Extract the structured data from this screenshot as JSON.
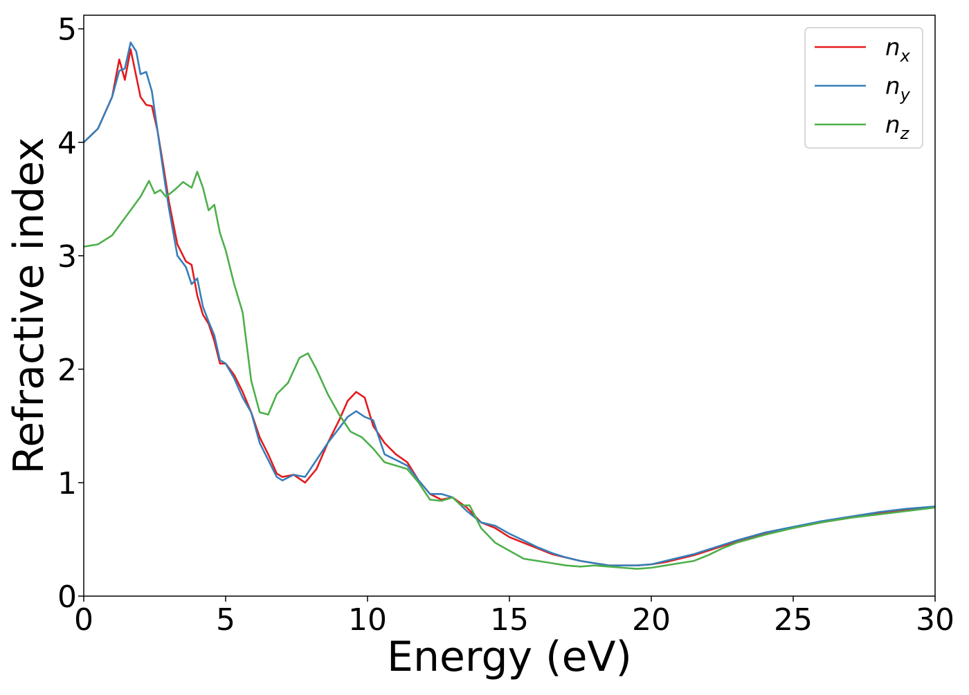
{
  "chart_data": {
    "type": "line",
    "title": "",
    "xlabel": "Energy (eV)",
    "ylabel": "Refractive index",
    "xlim": [
      0,
      30
    ],
    "ylim": [
      0,
      5.12
    ],
    "xticks": [
      0,
      5,
      10,
      15,
      20,
      25,
      30
    ],
    "yticks": [
      0,
      1,
      2,
      3,
      4,
      5
    ],
    "grid": false,
    "legend_position": "top-right",
    "series": [
      {
        "name": "n",
        "subscript": "x",
        "color": "#e41a1c",
        "x": [
          0,
          0.5,
          1.0,
          1.25,
          1.45,
          1.65,
          1.75,
          2.0,
          2.2,
          2.4,
          2.6,
          2.8,
          3.0,
          3.3,
          3.6,
          3.8,
          4.0,
          4.2,
          4.4,
          4.6,
          4.8,
          5.0,
          5.3,
          5.6,
          5.9,
          6.2,
          6.5,
          6.8,
          7.0,
          7.4,
          7.8,
          8.2,
          8.6,
          9.0,
          9.3,
          9.6,
          9.9,
          10.2,
          10.6,
          11.0,
          11.4,
          11.8,
          12.2,
          12.6,
          13.0,
          13.5,
          14.0,
          14.5,
          15.0,
          15.5,
          16.0,
          16.5,
          17.0,
          17.5,
          18.0,
          18.5,
          19.0,
          19.5,
          20.0,
          20.5,
          21.0,
          21.5,
          22.0,
          22.5,
          23.0,
          24.0,
          25.0,
          26.0,
          27.0,
          28.0,
          29.0,
          30.0
        ],
        "y": [
          4.0,
          4.12,
          4.4,
          4.73,
          4.55,
          4.82,
          4.7,
          4.4,
          4.33,
          4.32,
          4.1,
          3.8,
          3.48,
          3.1,
          2.95,
          2.92,
          2.65,
          2.48,
          2.4,
          2.25,
          2.05,
          2.05,
          1.95,
          1.8,
          1.62,
          1.4,
          1.25,
          1.08,
          1.05,
          1.07,
          1.0,
          1.12,
          1.35,
          1.55,
          1.72,
          1.8,
          1.75,
          1.5,
          1.35,
          1.25,
          1.18,
          1.02,
          0.9,
          0.85,
          0.87,
          0.78,
          0.65,
          0.6,
          0.52,
          0.47,
          0.42,
          0.37,
          0.34,
          0.31,
          0.29,
          0.27,
          0.27,
          0.27,
          0.28,
          0.3,
          0.33,
          0.36,
          0.4,
          0.44,
          0.48,
          0.55,
          0.6,
          0.65,
          0.69,
          0.73,
          0.76,
          0.79
        ]
      },
      {
        "name": "n",
        "subscript": "y",
        "color": "#377eb8",
        "x": [
          0,
          0.5,
          1.0,
          1.25,
          1.45,
          1.65,
          1.85,
          2.0,
          2.2,
          2.4,
          2.6,
          2.8,
          3.0,
          3.3,
          3.6,
          3.8,
          4.0,
          4.2,
          4.4,
          4.6,
          4.8,
          5.0,
          5.3,
          5.6,
          5.9,
          6.2,
          6.5,
          6.8,
          7.0,
          7.4,
          7.8,
          8.2,
          8.6,
          9.0,
          9.3,
          9.6,
          9.9,
          10.2,
          10.6,
          11.0,
          11.4,
          11.8,
          12.2,
          12.6,
          13.0,
          13.5,
          14.0,
          14.5,
          15.0,
          15.5,
          16.0,
          16.5,
          17.0,
          17.5,
          18.0,
          18.5,
          19.0,
          19.5,
          20.0,
          20.5,
          21.0,
          21.5,
          22.0,
          22.5,
          23.0,
          24.0,
          25.0,
          26.0,
          27.0,
          28.0,
          29.0,
          30.0
        ],
        "y": [
          4.0,
          4.12,
          4.4,
          4.63,
          4.65,
          4.88,
          4.8,
          4.6,
          4.62,
          4.45,
          4.1,
          3.75,
          3.42,
          3.0,
          2.9,
          2.75,
          2.8,
          2.55,
          2.42,
          2.3,
          2.08,
          2.05,
          1.92,
          1.75,
          1.62,
          1.35,
          1.2,
          1.05,
          1.02,
          1.07,
          1.05,
          1.2,
          1.35,
          1.48,
          1.58,
          1.63,
          1.58,
          1.55,
          1.25,
          1.2,
          1.15,
          1.02,
          0.9,
          0.9,
          0.87,
          0.75,
          0.65,
          0.62,
          0.55,
          0.49,
          0.43,
          0.38,
          0.34,
          0.31,
          0.29,
          0.27,
          0.27,
          0.27,
          0.28,
          0.31,
          0.34,
          0.37,
          0.41,
          0.45,
          0.49,
          0.56,
          0.61,
          0.66,
          0.7,
          0.74,
          0.77,
          0.79
        ]
      },
      {
        "name": "n",
        "subscript": "z",
        "color": "#4daf4a",
        "x": [
          0,
          0.5,
          1.0,
          1.5,
          2.0,
          2.3,
          2.5,
          2.7,
          2.9,
          3.2,
          3.5,
          3.8,
          4.0,
          4.2,
          4.4,
          4.6,
          4.8,
          5.0,
          5.3,
          5.6,
          5.9,
          6.2,
          6.5,
          6.8,
          7.2,
          7.6,
          7.9,
          8.2,
          8.6,
          9.0,
          9.4,
          9.8,
          10.2,
          10.6,
          11.0,
          11.4,
          11.8,
          12.2,
          12.6,
          13.0,
          13.3,
          13.6,
          14.0,
          14.5,
          15.0,
          15.5,
          16.0,
          16.5,
          17.0,
          17.5,
          18.0,
          18.5,
          19.0,
          19.5,
          20.0,
          20.5,
          21.0,
          21.5,
          22.0,
          22.5,
          23.0,
          24.0,
          25.0,
          26.0,
          27.0,
          28.0,
          29.0,
          30.0
        ],
        "y": [
          3.08,
          3.1,
          3.18,
          3.35,
          3.52,
          3.66,
          3.55,
          3.58,
          3.52,
          3.58,
          3.65,
          3.6,
          3.74,
          3.6,
          3.4,
          3.45,
          3.2,
          3.05,
          2.75,
          2.5,
          1.9,
          1.62,
          1.6,
          1.78,
          1.88,
          2.1,
          2.14,
          2.0,
          1.78,
          1.6,
          1.45,
          1.4,
          1.3,
          1.18,
          1.15,
          1.12,
          1.0,
          0.85,
          0.84,
          0.87,
          0.8,
          0.8,
          0.6,
          0.47,
          0.4,
          0.33,
          0.31,
          0.29,
          0.27,
          0.26,
          0.27,
          0.26,
          0.25,
          0.24,
          0.25,
          0.27,
          0.29,
          0.31,
          0.36,
          0.42,
          0.47,
          0.54,
          0.6,
          0.65,
          0.69,
          0.72,
          0.75,
          0.78
        ]
      }
    ]
  }
}
